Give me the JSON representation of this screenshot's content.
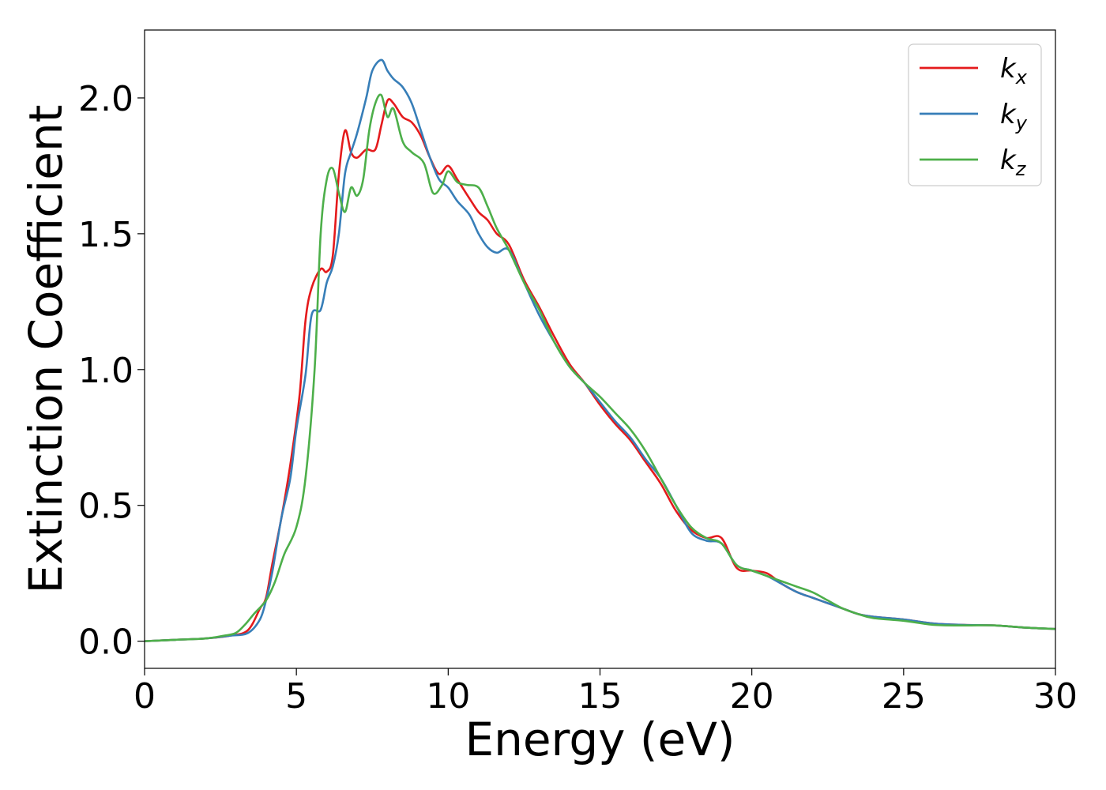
{
  "chart_data": {
    "type": "line",
    "xlabel": "Energy (eV)",
    "ylabel": "Extinction Coefficient",
    "xlim": [
      0,
      30
    ],
    "ylim": [
      -0.1,
      2.25
    ],
    "xticks": [
      0,
      5,
      10,
      15,
      20,
      25,
      30
    ],
    "xtick_labels": [
      "0",
      "5",
      "10",
      "15",
      "20",
      "25",
      "30"
    ],
    "yticks": [
      0.0,
      0.5,
      1.0,
      1.5,
      2.0
    ],
    "ytick_labels": [
      "0.0",
      "0.5",
      "1.0",
      "1.5",
      "2.0"
    ],
    "grid": false,
    "legend": "top-right",
    "series": [
      {
        "name": "k_x",
        "label_main": "k",
        "label_sub": "x",
        "color": "#e41a1c",
        "x": [
          0,
          1,
          2,
          2.8,
          3.4,
          3.8,
          4.0,
          4.2,
          4.5,
          4.8,
          5.1,
          5.3,
          5.5,
          5.8,
          6.0,
          6.2,
          6.4,
          6.6,
          6.8,
          7.0,
          7.3,
          7.6,
          7.8,
          8.0,
          8.2,
          8.5,
          8.8,
          9.1,
          9.4,
          9.7,
          10.0,
          10.3,
          10.7,
          11.0,
          11.3,
          11.6,
          12.0,
          12.5,
          13.0,
          13.5,
          14.0,
          14.5,
          15.0,
          15.5,
          16.0,
          16.5,
          17.0,
          17.5,
          18.0,
          18.5,
          19.0,
          19.5,
          20.0,
          20.5,
          21.0,
          21.5,
          22.0,
          22.5,
          23.0,
          23.5,
          24.0,
          25.0,
          26.0,
          27.0,
          28.0,
          29.0,
          30.0
        ],
        "values": [
          0.0,
          0.005,
          0.01,
          0.02,
          0.04,
          0.12,
          0.16,
          0.28,
          0.45,
          0.65,
          0.9,
          1.18,
          1.3,
          1.37,
          1.36,
          1.42,
          1.72,
          1.88,
          1.8,
          1.78,
          1.81,
          1.81,
          1.9,
          1.99,
          1.98,
          1.93,
          1.91,
          1.86,
          1.78,
          1.72,
          1.75,
          1.7,
          1.63,
          1.58,
          1.55,
          1.5,
          1.46,
          1.33,
          1.23,
          1.12,
          1.02,
          0.95,
          0.87,
          0.8,
          0.74,
          0.66,
          0.58,
          0.48,
          0.41,
          0.38,
          0.38,
          0.27,
          0.26,
          0.25,
          0.21,
          0.18,
          0.16,
          0.14,
          0.12,
          0.1,
          0.09,
          0.08,
          0.065,
          0.06,
          0.058,
          0.05,
          0.045
        ]
      },
      {
        "name": "k_y",
        "label_main": "k",
        "label_sub": "y",
        "color": "#377eb8",
        "x": [
          0,
          1,
          2,
          2.8,
          3.4,
          3.8,
          4.0,
          4.2,
          4.5,
          4.8,
          5.0,
          5.3,
          5.5,
          5.8,
          6.0,
          6.2,
          6.4,
          6.6,
          6.8,
          7.0,
          7.3,
          7.5,
          7.8,
          8.0,
          8.2,
          8.5,
          8.8,
          9.1,
          9.4,
          9.7,
          10.0,
          10.3,
          10.7,
          11.0,
          11.3,
          11.6,
          12.0,
          12.5,
          13.0,
          13.5,
          14.0,
          14.5,
          15.0,
          15.5,
          16.0,
          16.5,
          17.0,
          17.5,
          18.0,
          18.5,
          19.0,
          19.5,
          20.0,
          20.5,
          21.0,
          21.5,
          22.0,
          22.5,
          23.0,
          23.5,
          24.0,
          25.0,
          26.0,
          27.0,
          28.0,
          29.0,
          30.0
        ],
        "values": [
          0.0,
          0.005,
          0.01,
          0.02,
          0.03,
          0.08,
          0.15,
          0.25,
          0.45,
          0.6,
          0.78,
          0.98,
          1.2,
          1.22,
          1.32,
          1.38,
          1.5,
          1.72,
          1.8,
          1.87,
          2.0,
          2.1,
          2.14,
          2.1,
          2.07,
          2.04,
          1.98,
          1.88,
          1.78,
          1.7,
          1.67,
          1.62,
          1.57,
          1.5,
          1.45,
          1.43,
          1.44,
          1.32,
          1.2,
          1.1,
          1.01,
          0.95,
          0.88,
          0.81,
          0.75,
          0.67,
          0.6,
          0.5,
          0.4,
          0.37,
          0.36,
          0.28,
          0.26,
          0.24,
          0.21,
          0.18,
          0.16,
          0.14,
          0.12,
          0.1,
          0.09,
          0.08,
          0.065,
          0.06,
          0.058,
          0.05,
          0.045
        ]
      },
      {
        "name": "k_z",
        "label_main": "k",
        "label_sub": "z",
        "color": "#4daf4a",
        "x": [
          0,
          1,
          2,
          2.6,
          3.0,
          3.3,
          3.6,
          4.0,
          4.3,
          4.6,
          5.0,
          5.3,
          5.6,
          5.8,
          6.0,
          6.2,
          6.4,
          6.6,
          6.8,
          7.0,
          7.2,
          7.4,
          7.6,
          7.8,
          8.0,
          8.2,
          8.5,
          8.8,
          9.2,
          9.5,
          9.8,
          10.0,
          10.3,
          10.6,
          11.0,
          11.3,
          11.6,
          12.0,
          12.5,
          13.0,
          13.5,
          14.0,
          14.5,
          15.0,
          15.5,
          16.0,
          16.5,
          17.0,
          17.5,
          18.0,
          18.5,
          19.0,
          19.5,
          20.0,
          20.5,
          21.0,
          21.5,
          22.0,
          22.5,
          23.0,
          23.5,
          24.0,
          25.0,
          26.0,
          27.0,
          28.0,
          29.0,
          30.0
        ],
        "values": [
          0.0,
          0.005,
          0.01,
          0.02,
          0.03,
          0.06,
          0.1,
          0.15,
          0.22,
          0.32,
          0.42,
          0.6,
          1.0,
          1.5,
          1.7,
          1.74,
          1.65,
          1.58,
          1.67,
          1.64,
          1.7,
          1.88,
          1.98,
          2.01,
          1.93,
          1.96,
          1.84,
          1.8,
          1.76,
          1.65,
          1.68,
          1.73,
          1.69,
          1.68,
          1.67,
          1.6,
          1.52,
          1.44,
          1.32,
          1.22,
          1.1,
          1.01,
          0.95,
          0.9,
          0.84,
          0.78,
          0.7,
          0.6,
          0.5,
          0.42,
          0.38,
          0.36,
          0.28,
          0.26,
          0.24,
          0.22,
          0.2,
          0.18,
          0.15,
          0.12,
          0.1,
          0.085,
          0.075,
          0.06,
          0.058,
          0.058,
          0.05,
          0.045
        ]
      }
    ]
  }
}
